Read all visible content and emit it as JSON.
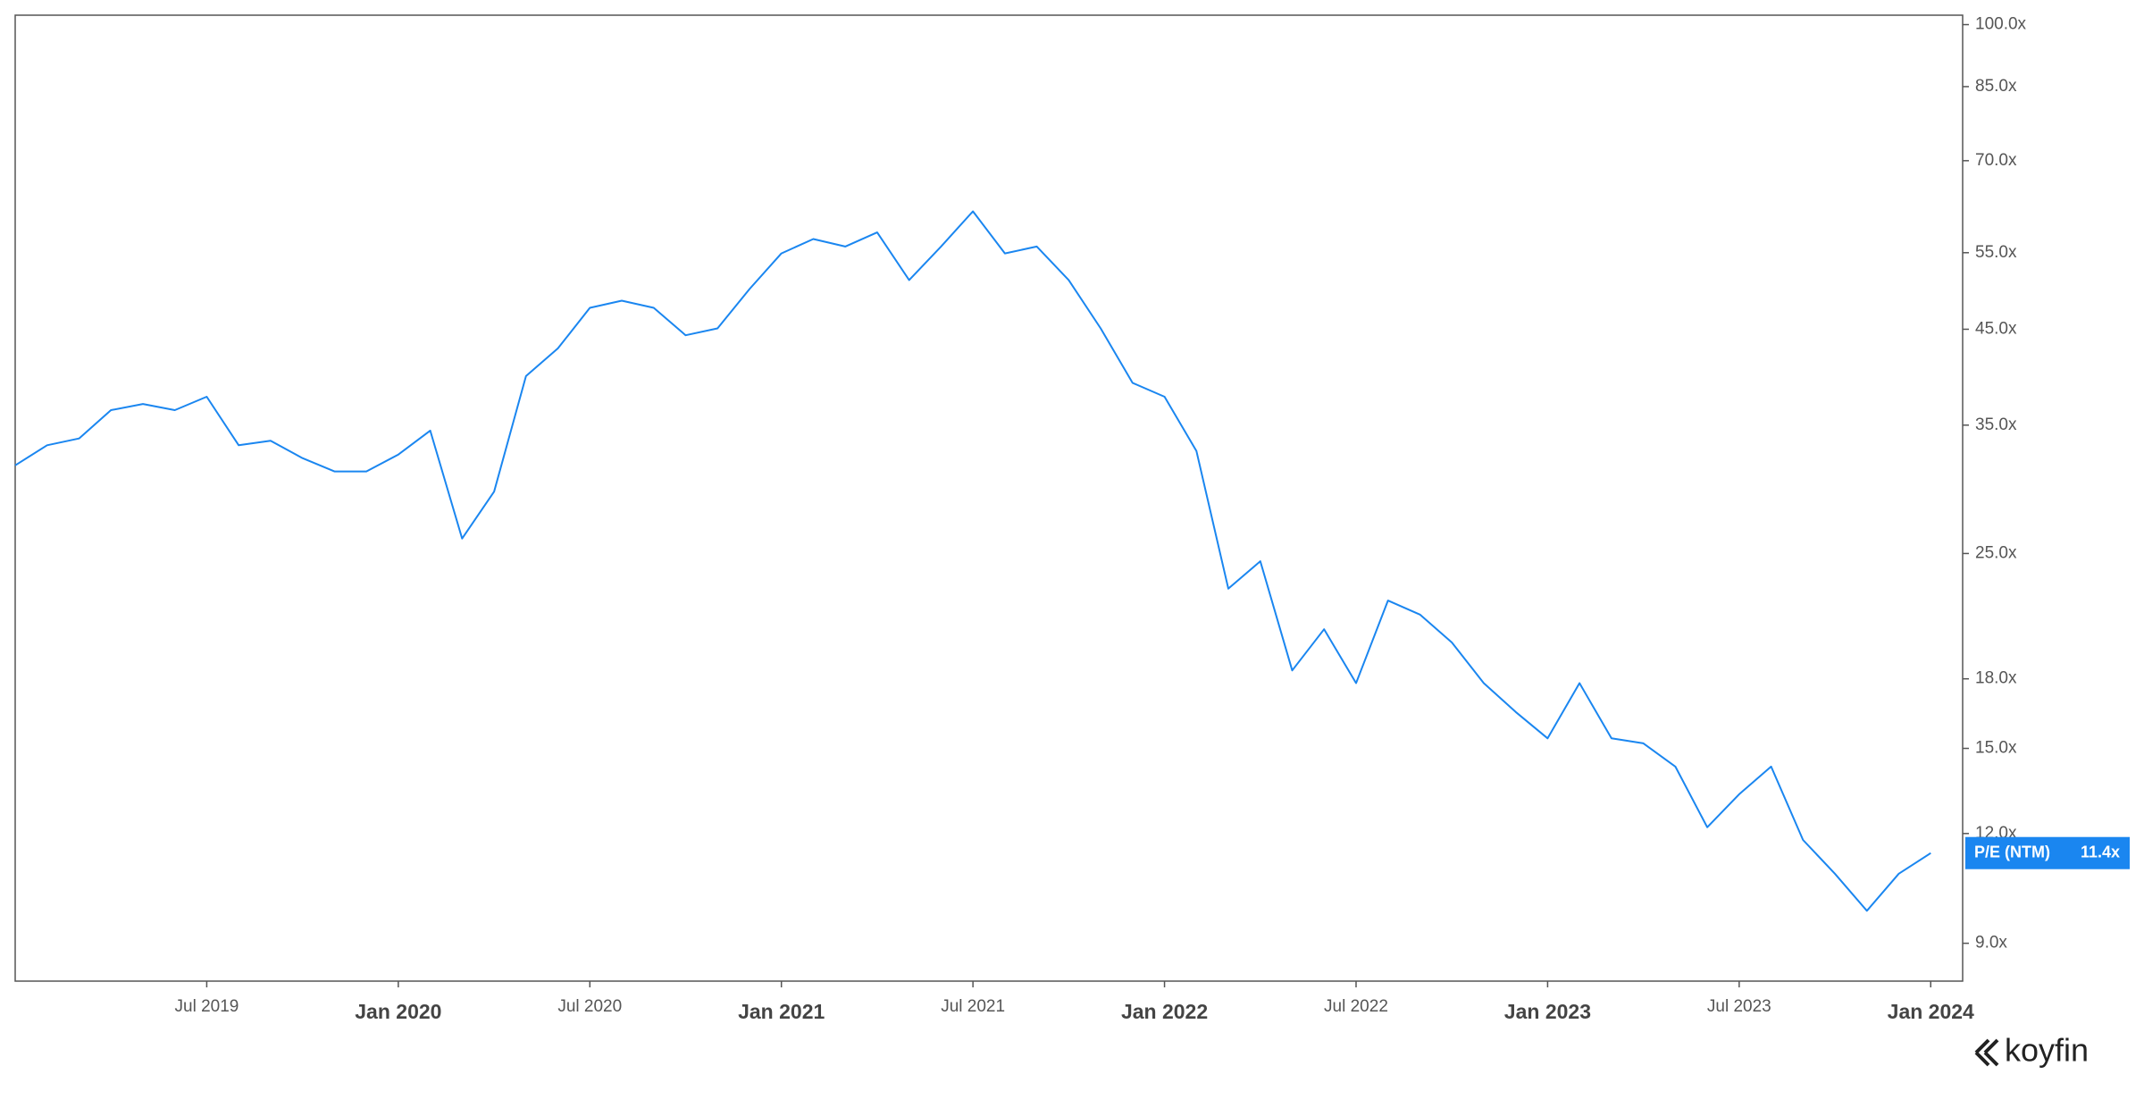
{
  "chart_data": {
    "type": "line",
    "log_scale": true,
    "source": "koyfin",
    "x": [
      "2019-01",
      "2019-02",
      "2019-03",
      "2019-04",
      "2019-05",
      "2019-06",
      "2019-07",
      "2019-08",
      "2019-09",
      "2019-10",
      "2019-11",
      "2019-12",
      "2020-01",
      "2020-02",
      "2020-03",
      "2020-04",
      "2020-05",
      "2020-06",
      "2020-07",
      "2020-08",
      "2020-09",
      "2020-10",
      "2020-11",
      "2020-12",
      "2021-01",
      "2021-02",
      "2021-03",
      "2021-04",
      "2021-05",
      "2021-06",
      "2021-07",
      "2021-08",
      "2021-09",
      "2021-10",
      "2021-11",
      "2021-12",
      "2022-01",
      "2022-02",
      "2022-03",
      "2022-04",
      "2022-05",
      "2022-06",
      "2022-07",
      "2022-08",
      "2022-09",
      "2022-10",
      "2022-11",
      "2022-12",
      "2023-01",
      "2023-02",
      "2023-03",
      "2023-04",
      "2023-05",
      "2023-06",
      "2023-07",
      "2023-08",
      "2023-09",
      "2023-10",
      "2023-11",
      "2023-12",
      "2024-01"
    ],
    "series": [
      {
        "name": "P/E (NTM)",
        "color": "#1a86f0",
        "values": [
          31.5,
          33.2,
          33.8,
          36.4,
          37.0,
          36.4,
          37.7,
          33.2,
          33.6,
          32.1,
          31.0,
          31.0,
          32.4,
          34.5,
          26.0,
          29.4,
          39.8,
          42.8,
          47.6,
          48.5,
          47.6,
          44.3,
          45.1,
          50.0,
          54.9,
          57.0,
          55.9,
          58.0,
          51.2,
          55.9,
          61.3,
          54.9,
          55.9,
          51.2,
          45.1,
          39.1,
          37.7,
          32.7,
          22.8,
          24.5,
          18.4,
          20.5,
          17.8,
          22.1,
          21.3,
          19.8,
          17.8,
          16.5,
          15.4,
          17.8,
          15.4,
          15.2,
          14.3,
          12.2,
          13.3,
          14.3,
          11.8,
          10.8,
          9.8,
          10.8,
          11.4
        ],
        "current_value": {
          "value": 11.4,
          "label": "11.4x"
        }
      }
    ],
    "xlim": [
      "2019-01",
      "2024-02"
    ],
    "xticks": [
      {
        "value": "2019-07",
        "label": "Jul 2019"
      },
      {
        "value": "2020-01",
        "label": "Jan 2020"
      },
      {
        "value": "2020-07",
        "label": "Jul 2020"
      },
      {
        "value": "2021-01",
        "label": "Jan 2021"
      },
      {
        "value": "2021-07",
        "label": "Jul 2021"
      },
      {
        "value": "2022-01",
        "label": "Jan 2022"
      },
      {
        "value": "2022-07",
        "label": "Jul 2022"
      },
      {
        "value": "2023-01",
        "label": "Jan 2023"
      },
      {
        "value": "2023-07",
        "label": "Jul 2023"
      },
      {
        "value": "2024-01",
        "label": "Jan 2024"
      }
    ],
    "ylim": [
      8.15,
      102.5
    ],
    "yticks": [
      {
        "value": 9,
        "label": "9.0x"
      },
      {
        "value": 12,
        "label": "12.0x"
      },
      {
        "value": 15,
        "label": "15.0x"
      },
      {
        "value": 18,
        "label": "18.0x"
      },
      {
        "value": 25,
        "label": "25.0x"
      },
      {
        "value": 35,
        "label": "35.0x"
      },
      {
        "value": 45,
        "label": "45.0x"
      },
      {
        "value": 55,
        "label": "55.0x"
      },
      {
        "value": 70,
        "label": "70.0x"
      },
      {
        "value": 85,
        "label": "85.0x"
      },
      {
        "value": 100,
        "label": "100.0x"
      }
    ]
  }
}
